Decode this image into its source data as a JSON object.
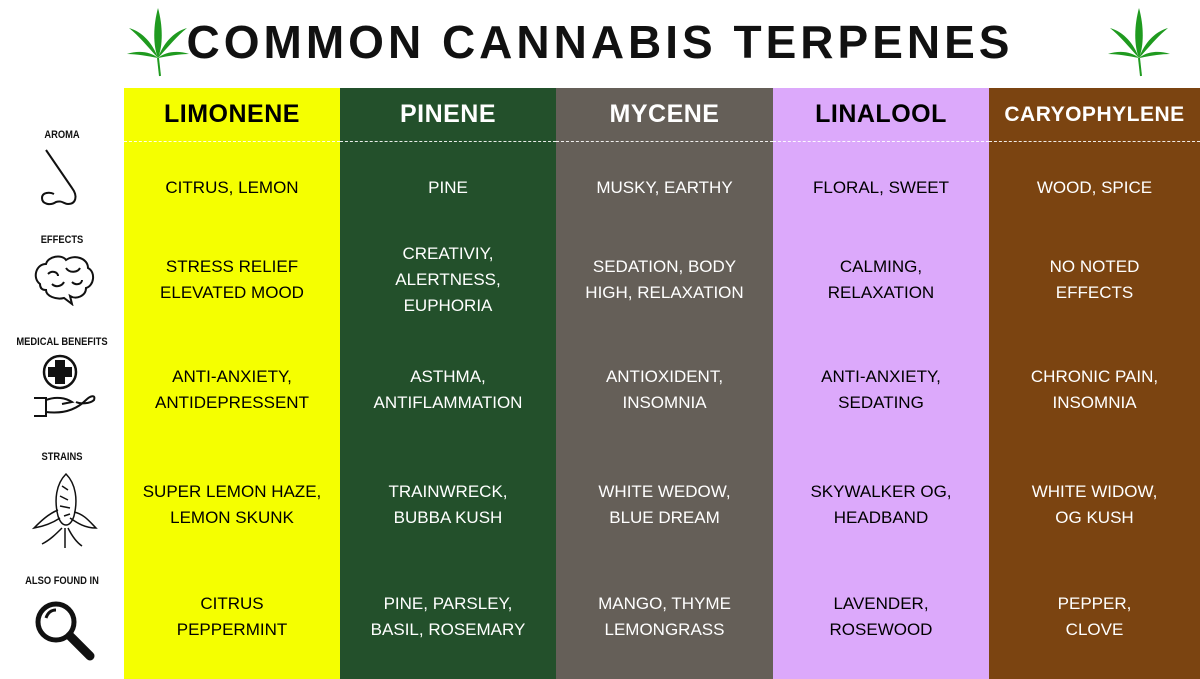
{
  "title": "COMMON CANNABIS TERPENES",
  "icons": {
    "title_decoration": "cannabis-leaf-icon",
    "aroma": "nose-icon",
    "effects": "brain-icon",
    "medical_benefits": "medical-cross-hand-icon",
    "strains": "cannabis-bud-icon",
    "also_found_in": "magnifying-glass-icon"
  },
  "row_labels": [
    "AROMA",
    "EFFECTS",
    "MEDICAL BENEFITS",
    "STRAINS",
    "ALSO FOUND IN"
  ],
  "columns": [
    {
      "name": "LIMONENE",
      "bg": "#f5ff00",
      "fg": "#000000",
      "cells": [
        "CITRUS, LEMON",
        "STRESS RELIEF\nELEVATED MOOD",
        "ANTI-ANXIETY,\nANTIDEPRESSENT",
        "SUPER LEMON HAZE,\nLEMON SKUNK",
        "CITRUS\nPEPPERMINT"
      ]
    },
    {
      "name": "PINENE",
      "bg": "#23502b",
      "fg": "#ffffff",
      "cells": [
        "PINE",
        "CREATIVIY,\nALERTNESS,\nEUPHORIA",
        "ASTHMA,\nANTIFLAMMATION",
        "TRAINWRECK,\nBUBBA KUSH",
        "PINE, PARSLEY,\nBASIL, ROSEMARY"
      ]
    },
    {
      "name": "MYCENE",
      "bg": "#655f58",
      "fg": "#ffffff",
      "cells": [
        "MUSKY, EARTHY",
        "SEDATION, BODY\nHIGH, RELAXATION",
        "ANTIOXIDENT,\nINSOMNIA",
        "WHITE WEDOW,\nBLUE DREAM",
        "MANGO, THYME\nLEMONGRASS"
      ]
    },
    {
      "name": "LINALOOL",
      "bg": "#dca9fb",
      "fg": "#000000",
      "cells": [
        "FLORAL, SWEET",
        "CALMING,\nRELAXATION",
        "ANTI-ANXIETY,\nSEDATING",
        "SKYWALKER OG,\nHEADBAND",
        "LAVENDER,\nROSEWOOD"
      ]
    },
    {
      "name": "CARYOPHYLENE",
      "bg": "#7b4411",
      "fg": "#ffffff",
      "cells": [
        "WOOD, SPICE",
        "NO NOTED\nEFFECTS",
        "CHRONIC PAIN,\nINSOMNIA",
        "WHITE WIDOW,\nOG KUSH",
        "PEPPER,\nCLOVE"
      ]
    }
  ]
}
